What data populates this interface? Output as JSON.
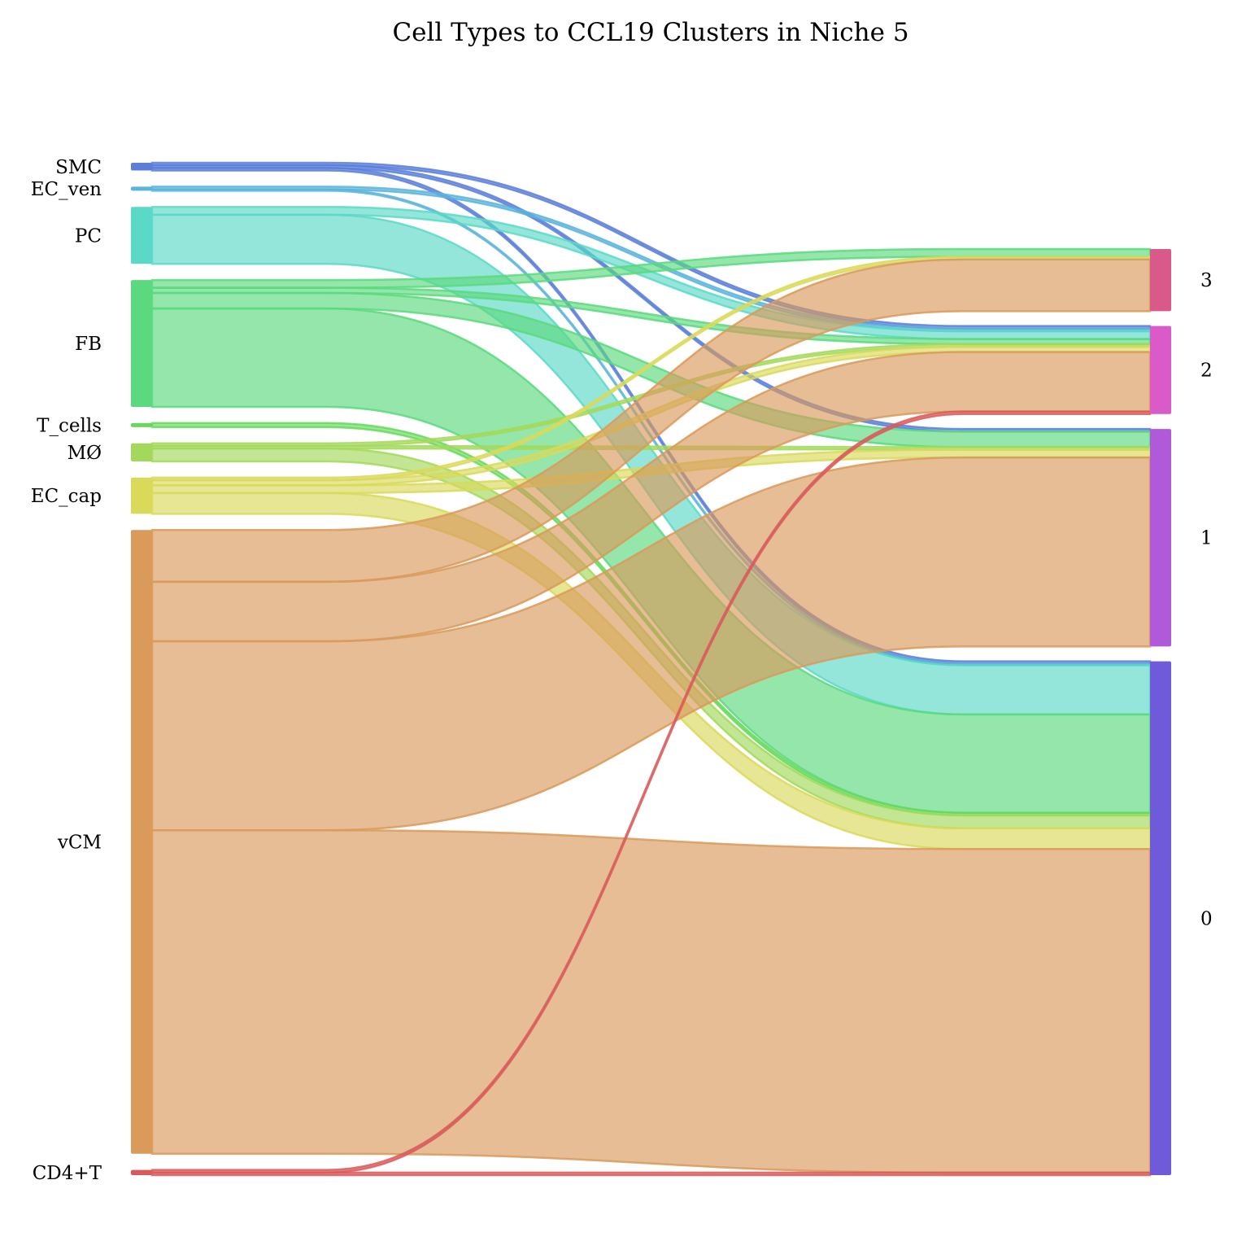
{
  "chart_data": {
    "type": "sankey",
    "title": "Cell Types to CCL19 Clusters in Niche 5",
    "sources": [
      {
        "name": "SMC",
        "color": "#5b7fd9"
      },
      {
        "name": "EC_ven",
        "color": "#5ab4dc"
      },
      {
        "name": "PC",
        "color": "#5ad9c6"
      },
      {
        "name": "FB",
        "color": "#5ad97e"
      },
      {
        "name": "T_cells",
        "color": "#66d95a"
      },
      {
        "name": "MØ",
        "color": "#a3d95a"
      },
      {
        "name": "EC_cap",
        "color": "#d9d95a"
      },
      {
        "name": "vCM",
        "color": "#d99a5a"
      },
      {
        "name": "CD4+T",
        "color": "#d95a5a"
      }
    ],
    "targets": [
      {
        "name": "3",
        "color": "#d95a8a"
      },
      {
        "name": "2",
        "color": "#d95ac8"
      },
      {
        "name": "1",
        "color": "#b05ad9"
      },
      {
        "name": "0",
        "color": "#6f5ad9"
      }
    ],
    "flows": [
      {
        "source": "SMC",
        "target": "2",
        "value": 1
      },
      {
        "source": "SMC",
        "target": "1",
        "value": 1
      },
      {
        "source": "SMC",
        "target": "0",
        "value": 1
      },
      {
        "source": "EC_ven",
        "target": "2",
        "value": 1
      },
      {
        "source": "EC_ven",
        "target": "0",
        "value": 0.5
      },
      {
        "source": "PC",
        "target": "2",
        "value": 3
      },
      {
        "source": "PC",
        "target": "0",
        "value": 19
      },
      {
        "source": "FB",
        "target": "3",
        "value": 3
      },
      {
        "source": "FB",
        "target": "2",
        "value": 2
      },
      {
        "source": "FB",
        "target": "1",
        "value": 6
      },
      {
        "source": "FB",
        "target": "0",
        "value": 38
      },
      {
        "source": "T_cells",
        "target": "0",
        "value": 1
      },
      {
        "source": "MØ",
        "target": "2",
        "value": 1
      },
      {
        "source": "MØ",
        "target": "1",
        "value": 1
      },
      {
        "source": "MØ",
        "target": "0",
        "value": 5
      },
      {
        "source": "EC_cap",
        "target": "3",
        "value": 1
      },
      {
        "source": "EC_cap",
        "target": "2",
        "value": 2
      },
      {
        "source": "EC_cap",
        "target": "1",
        "value": 3
      },
      {
        "source": "EC_cap",
        "target": "0",
        "value": 8
      },
      {
        "source": "vCM",
        "target": "3",
        "value": 20
      },
      {
        "source": "vCM",
        "target": "2",
        "value": 23
      },
      {
        "source": "vCM",
        "target": "1",
        "value": 73
      },
      {
        "source": "vCM",
        "target": "0",
        "value": 125
      },
      {
        "source": "CD4+T",
        "target": "2",
        "value": 1
      },
      {
        "source": "CD4+T",
        "target": "0",
        "value": 1
      }
    ]
  }
}
